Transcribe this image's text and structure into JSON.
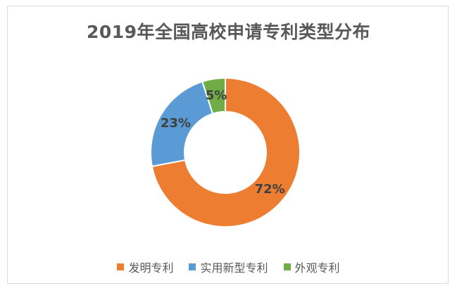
{
  "chart_data": {
    "type": "pie",
    "variant": "donut",
    "title": "2019年全国高校申请专利类型分布",
    "categories": [
      "发明专利",
      "实用新型专利",
      "外观专利"
    ],
    "values": [
      72,
      23,
      5
    ],
    "labels": [
      "72%",
      "23%",
      "5%"
    ],
    "colors": [
      "#ED7D31",
      "#5B9BD5",
      "#70AD47"
    ],
    "legend_position": "bottom",
    "start_angle": "12 o'clock",
    "direction": "clockwise"
  }
}
